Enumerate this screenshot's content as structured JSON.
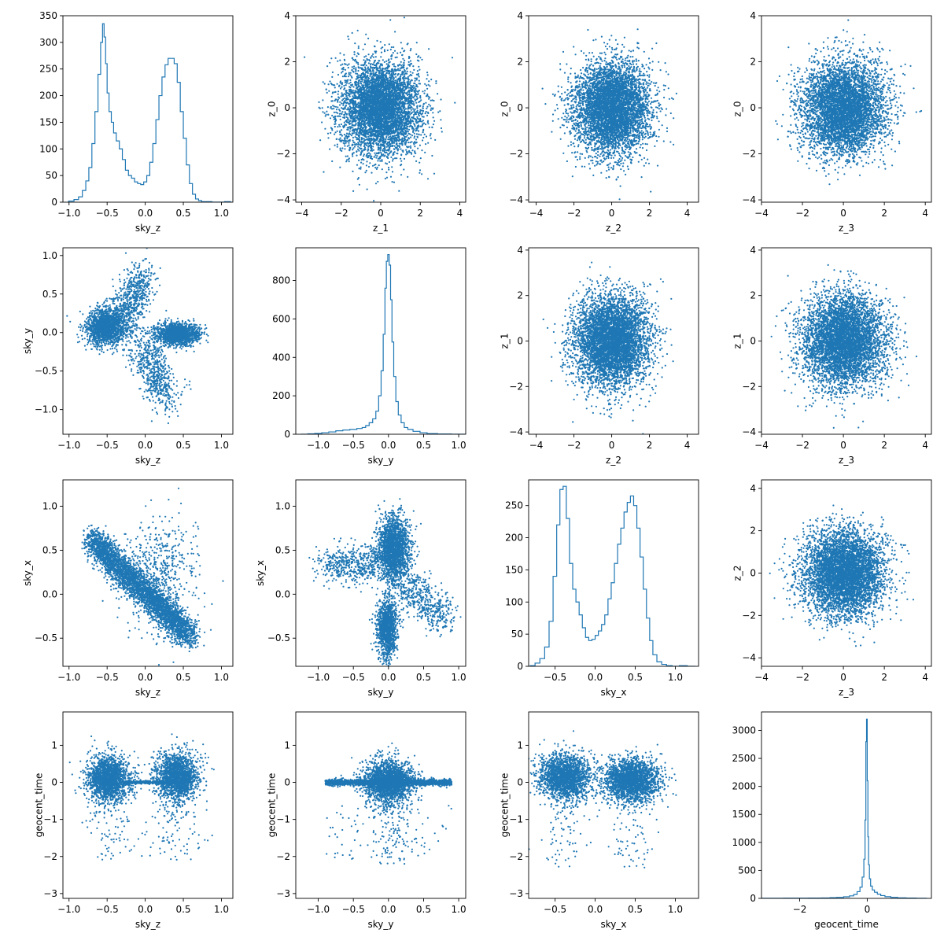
{
  "figure": {
    "rows": 4,
    "cols": 4,
    "color": "#1f77b4",
    "background": "#ffffff"
  },
  "chart_data": [
    {
      "type": "histogram",
      "row": 0,
      "col": 0,
      "xlabel": "sky_z",
      "ylabel": "",
      "xlim": [
        -1.08,
        1.15
      ],
      "ylim": [
        0,
        350
      ],
      "xticks": [
        -1.0,
        -0.5,
        0.0,
        0.5,
        1.0
      ],
      "xtick_labels": [
        "−1.0",
        "−0.5",
        "0.0",
        "0.5",
        "1.0"
      ],
      "yticks": [
        0,
        50,
        100,
        150,
        200,
        250,
        300,
        350
      ],
      "ytick_labels": [
        "0",
        "50",
        "100",
        "150",
        "200",
        "250",
        "300",
        "350"
      ],
      "bins": {
        "x": [
          -0.97,
          -0.9,
          -0.85,
          -0.8,
          -0.76,
          -0.72,
          -0.68,
          -0.64,
          -0.6,
          -0.57,
          -0.55,
          -0.53,
          -0.51,
          -0.49,
          -0.46,
          -0.43,
          -0.4,
          -0.36,
          -0.32,
          -0.28,
          -0.24,
          -0.2,
          -0.16,
          -0.12,
          -0.08,
          -0.04,
          0.0,
          0.04,
          0.08,
          0.12,
          0.16,
          0.2,
          0.24,
          0.28,
          0.32,
          0.36,
          0.4,
          0.44,
          0.48,
          0.52,
          0.56,
          0.6,
          0.64,
          0.68,
          0.72,
          0.76,
          0.8,
          0.85,
          0.9,
          1.0,
          1.08
        ],
        "y": [
          2,
          5,
          10,
          22,
          40,
          65,
          110,
          170,
          240,
          300,
          335,
          310,
          260,
          205,
          170,
          150,
          130,
          115,
          100,
          80,
          60,
          50,
          45,
          38,
          35,
          33,
          38,
          50,
          75,
          110,
          155,
          200,
          235,
          258,
          270,
          270,
          260,
          225,
          170,
          120,
          70,
          35,
          15,
          6,
          3,
          1,
          1,
          1,
          0,
          0,
          1
        ]
      }
    },
    {
      "type": "scatter",
      "row": 0,
      "col": 1,
      "xlabel": "z_1",
      "ylabel": "z_0",
      "xlim": [
        -4.3,
        4.3
      ],
      "ylim": [
        -4.1,
        4.0
      ],
      "xticks": [
        -4,
        -2,
        0,
        2,
        4
      ],
      "xtick_labels": [
        "−4",
        "−2",
        "0",
        "2",
        "4"
      ],
      "yticks": [
        -4,
        -2,
        0,
        2,
        4
      ],
      "ytick_labels": [
        "−4",
        "−2",
        "0",
        "2",
        "4"
      ],
      "distribution": "isotropic standard normal, centred (0, 0), sigma 1 in each coordinate"
    },
    {
      "type": "scatter",
      "row": 0,
      "col": 2,
      "xlabel": "z_2",
      "ylabel": "z_0",
      "xlim": [
        -4.4,
        4.6
      ],
      "ylim": [
        -4.1,
        4.0
      ],
      "xticks": [
        -4,
        -2,
        0,
        2,
        4
      ],
      "xtick_labels": [
        "−4",
        "−2",
        "0",
        "2",
        "4"
      ],
      "yticks": [
        -4,
        -2,
        0,
        2,
        4
      ],
      "ytick_labels": [
        "−4",
        "−2",
        "0",
        "2",
        "4"
      ],
      "distribution": "isotropic standard normal, centred (0, 0), sigma 1 in each coordinate"
    },
    {
      "type": "scatter",
      "row": 0,
      "col": 3,
      "xlabel": "z_3",
      "ylabel": "z_0",
      "xlim": [
        -4.0,
        4.3
      ],
      "ylim": [
        -4.1,
        4.0
      ],
      "xticks": [
        -4,
        -2,
        0,
        2,
        4
      ],
      "xtick_labels": [
        "−4",
        "−2",
        "0",
        "2",
        "4"
      ],
      "yticks": [
        -4,
        -2,
        0,
        2,
        4
      ],
      "ytick_labels": [
        "−4",
        "−2",
        "0",
        "2",
        "4"
      ],
      "distribution": "isotropic standard normal, centred (0, 0), sigma 1 in each coordinate"
    },
    {
      "type": "scatter",
      "row": 1,
      "col": 0,
      "xlabel": "sky_z",
      "ylabel": "sky_y",
      "xlim": [
        -1.08,
        1.15
      ],
      "ylim": [
        -1.32,
        1.1
      ],
      "xticks": [
        -1.0,
        -0.5,
        0.0,
        0.5,
        1.0
      ],
      "xtick_labels": [
        "−1.0",
        "−0.5",
        "0.0",
        "0.5",
        "1.0"
      ],
      "yticks": [
        -1.0,
        -0.5,
        0.0,
        0.5,
        1.0
      ],
      "ytick_labels": [
        "−1.0",
        "−0.5",
        "0.0",
        "0.5",
        "1.0"
      ],
      "distribution": "dense cluster near sky_z -0.5 and another near 0.4 along sky_y 0, diffuse arms reaching sky_y 0.9 and -1.2"
    },
    {
      "type": "histogram",
      "row": 1,
      "col": 1,
      "xlabel": "sky_y",
      "ylabel": "",
      "xlim": [
        -1.32,
        1.1
      ],
      "ylim": [
        0,
        970
      ],
      "xticks": [
        -1.0,
        -0.5,
        0.0,
        0.5,
        1.0
      ],
      "xtick_labels": [
        "−1.0",
        "−0.5",
        "0.0",
        "0.5",
        "1.0"
      ],
      "yticks": [
        0,
        200,
        400,
        600,
        800
      ],
      "ytick_labels": [
        "0",
        "200",
        "400",
        "600",
        "800"
      ],
      "bins": {
        "x": [
          -1.2,
          -1.1,
          -1.0,
          -0.9,
          -0.8,
          -0.7,
          -0.6,
          -0.5,
          -0.4,
          -0.35,
          -0.3,
          -0.25,
          -0.2,
          -0.16,
          -0.12,
          -0.09,
          -0.06,
          -0.04,
          -0.02,
          0.0,
          0.02,
          0.04,
          0.06,
          0.09,
          0.12,
          0.16,
          0.2,
          0.25,
          0.3,
          0.4,
          0.5,
          0.6,
          0.8,
          1.0
        ],
        "y": [
          0,
          2,
          4,
          8,
          12,
          18,
          22,
          25,
          30,
          35,
          45,
          60,
          80,
          120,
          200,
          330,
          520,
          760,
          900,
          935,
          880,
          700,
          480,
          300,
          170,
          100,
          60,
          35,
          25,
          15,
          8,
          3,
          1,
          0
        ]
      }
    },
    {
      "type": "scatter",
      "row": 1,
      "col": 2,
      "xlabel": "z_2",
      "ylabel": "z_1",
      "xlim": [
        -4.4,
        4.6
      ],
      "ylim": [
        -4.1,
        4.1
      ],
      "xticks": [
        -4,
        -2,
        0,
        2,
        4
      ],
      "xtick_labels": [
        "−4",
        "−2",
        "0",
        "2",
        "4"
      ],
      "yticks": [
        -4,
        -2,
        0,
        2,
        4
      ],
      "ytick_labels": [
        "−4",
        "−2",
        "0",
        "2",
        "4"
      ],
      "distribution": "isotropic standard normal, centred (0, 0), sigma 1 in each coordinate"
    },
    {
      "type": "scatter",
      "row": 1,
      "col": 3,
      "xlabel": "z_3",
      "ylabel": "z_1",
      "xlim": [
        -4.0,
        4.3
      ],
      "ylim": [
        -4.1,
        4.1
      ],
      "xticks": [
        -4,
        -2,
        0,
        2,
        4
      ],
      "xtick_labels": [
        "−4",
        "−2",
        "0",
        "2",
        "4"
      ],
      "yticks": [
        -4,
        -2,
        0,
        2,
        4
      ],
      "ytick_labels": [
        "−4",
        "−2",
        "0",
        "2",
        "4"
      ],
      "distribution": "isotropic standard normal, centred (0, 0), sigma 1 in each coordinate"
    },
    {
      "type": "scatter",
      "row": 2,
      "col": 0,
      "xlabel": "sky_z",
      "ylabel": "sky_x",
      "xlim": [
        -1.08,
        1.15
      ],
      "ylim": [
        -0.82,
        1.3
      ],
      "xticks": [
        -1.0,
        -0.5,
        0.0,
        0.5,
        1.0
      ],
      "xtick_labels": [
        "−1.0",
        "−0.5",
        "0.0",
        "0.5",
        "1.0"
      ],
      "yticks": [
        -0.5,
        0.0,
        0.5,
        1.0
      ],
      "ytick_labels": [
        "−0.5",
        "0.0",
        "0.5",
        "1.0"
      ],
      "distribution": "anti-correlated band from (-0.7, 0.65) to (0.6, -0.5) with diffuse scatter to sky_x 0.8"
    },
    {
      "type": "scatter",
      "row": 2,
      "col": 1,
      "xlabel": "sky_y",
      "ylabel": "sky_x",
      "xlim": [
        -1.32,
        1.1
      ],
      "ylim": [
        -0.82,
        1.3
      ],
      "xticks": [
        -1.0,
        -0.5,
        0.0,
        0.5,
        1.0
      ],
      "xtick_labels": [
        "−1.0",
        "−0.5",
        "0.0",
        "0.5",
        "1.0"
      ],
      "yticks": [
        -0.5,
        0.0,
        0.5,
        1.0
      ],
      "ytick_labels": [
        "−0.5",
        "0.0",
        "0.5",
        "1.0"
      ],
      "distribution": "dense clusters near (0.05, 0.55) and (0.0, -0.4), diffuse arms extending left and right"
    },
    {
      "type": "histogram",
      "row": 2,
      "col": 2,
      "xlabel": "sky_x",
      "ylabel": "",
      "xlim": [
        -0.83,
        1.29
      ],
      "ylim": [
        0,
        290
      ],
      "xticks": [
        -0.5,
        0.0,
        0.5,
        1.0
      ],
      "xtick_labels": [
        "−0.5",
        "0.0",
        "0.5",
        "1.0"
      ],
      "yticks": [
        0,
        50,
        100,
        150,
        200,
        250
      ],
      "ytick_labels": [
        "0",
        "50",
        "100",
        "150",
        "200",
        "250"
      ],
      "bins": {
        "x": [
          -0.78,
          -0.72,
          -0.66,
          -0.6,
          -0.55,
          -0.5,
          -0.46,
          -0.42,
          -0.38,
          -0.34,
          -0.3,
          -0.26,
          -0.22,
          -0.18,
          -0.14,
          -0.1,
          -0.06,
          -0.02,
          0.02,
          0.06,
          0.1,
          0.14,
          0.18,
          0.22,
          0.26,
          0.3,
          0.34,
          0.38,
          0.42,
          0.46,
          0.5,
          0.54,
          0.58,
          0.62,
          0.66,
          0.7,
          0.74,
          0.8,
          0.86,
          0.92,
          1.0,
          1.1,
          1.2
        ],
        "y": [
          1,
          5,
          12,
          30,
          70,
          140,
          220,
          275,
          280,
          230,
          160,
          120,
          100,
          80,
          60,
          45,
          40,
          42,
          48,
          55,
          65,
          80,
          105,
          130,
          160,
          190,
          215,
          240,
          255,
          265,
          250,
          215,
          170,
          120,
          75,
          40,
          18,
          7,
          3,
          1,
          0,
          1,
          0
        ]
      }
    },
    {
      "type": "scatter",
      "row": 2,
      "col": 3,
      "xlabel": "z_3",
      "ylabel": "z_2",
      "xlim": [
        -4.0,
        4.3
      ],
      "ylim": [
        -4.4,
        4.4
      ],
      "xticks": [
        -4,
        -2,
        0,
        2,
        4
      ],
      "xtick_labels": [
        "−4",
        "−2",
        "0",
        "2",
        "4"
      ],
      "yticks": [
        -4,
        -2,
        0,
        2,
        4
      ],
      "ytick_labels": [
        "−4",
        "−2",
        "0",
        "2",
        "4"
      ],
      "distribution": "isotropic standard normal, centred (0, 0), sigma 1 in each coordinate"
    },
    {
      "type": "scatter",
      "row": 3,
      "col": 0,
      "xlabel": "sky_z",
      "ylabel": "geocent_time",
      "xlim": [
        -1.08,
        1.15
      ],
      "ylim": [
        -3.13,
        1.9
      ],
      "xticks": [
        -1.0,
        -0.5,
        0.0,
        0.5,
        1.0
      ],
      "xtick_labels": [
        "−1.0",
        "−0.5",
        "0.0",
        "0.5",
        "1.0"
      ],
      "yticks": [
        -3,
        -2,
        -1,
        0,
        1
      ],
      "ytick_labels": [
        "−3",
        "−2",
        "−1",
        "0",
        "1"
      ],
      "distribution": "two clusters near sky_z -0.5 and 0.4 around geocent_time 0, narrow line at 0 between, sparse tail to -3"
    },
    {
      "type": "scatter",
      "row": 3,
      "col": 1,
      "xlabel": "sky_y",
      "ylabel": "geocent_time",
      "xlim": [
        -1.32,
        1.1
      ],
      "ylim": [
        -3.13,
        1.9
      ],
      "xticks": [
        -1.0,
        -0.5,
        0.0,
        0.5,
        1.0
      ],
      "xtick_labels": [
        "−1.0",
        "−0.5",
        "0.0",
        "0.5",
        "1.0"
      ],
      "yticks": [
        -3,
        -2,
        -1,
        0,
        1
      ],
      "ytick_labels": [
        "−3",
        "−2",
        "−1",
        "0",
        "1"
      ],
      "distribution": "concentrated near sky_y 0 with vertical spread, thin horizontal band at geocent_time 0"
    },
    {
      "type": "scatter",
      "row": 3,
      "col": 2,
      "xlabel": "sky_x",
      "ylabel": "geocent_time",
      "xlim": [
        -0.83,
        1.29
      ],
      "ylim": [
        -3.13,
        1.9
      ],
      "xticks": [
        -0.5,
        0.0,
        0.5,
        1.0
      ],
      "xtick_labels": [
        "−0.5",
        "0.0",
        "0.5",
        "1.0"
      ],
      "yticks": [
        -3,
        -2,
        -1,
        0,
        1
      ],
      "ytick_labels": [
        "−3",
        "−2",
        "−1",
        "0",
        "1"
      ],
      "distribution": "two clusters near sky_x -0.4 and 0.5 around geocent_time 0, sparse tail downward"
    },
    {
      "type": "histogram",
      "row": 3,
      "col": 3,
      "xlabel": "geocent_time",
      "ylabel": "",
      "xlim": [
        -3.13,
        1.9
      ],
      "ylim": [
        0,
        3330
      ],
      "xticks": [
        -2,
        0
      ],
      "xtick_labels": [
        "−2",
        "0"
      ],
      "yticks": [
        0,
        500,
        1000,
        1500,
        2000,
        2500,
        3000
      ],
      "ytick_labels": [
        "0",
        "500",
        "1000",
        "1500",
        "2000",
        "2500",
        "3000"
      ],
      "bins": {
        "x": [
          -2.95,
          -2.0,
          -1.5,
          -1.2,
          -1.0,
          -0.8,
          -0.6,
          -0.45,
          -0.35,
          -0.25,
          -0.18,
          -0.12,
          -0.08,
          -0.05,
          -0.03,
          -0.01,
          0.01,
          0.03,
          0.05,
          0.08,
          0.12,
          0.18,
          0.25,
          0.35,
          0.45,
          0.6,
          0.8,
          1.0,
          1.3,
          1.6
        ],
        "y": [
          2,
          3,
          5,
          8,
          12,
          18,
          28,
          45,
          70,
          120,
          200,
          380,
          700,
          1400,
          2800,
          3200,
          2100,
          1100,
          600,
          350,
          220,
          150,
          110,
          75,
          50,
          30,
          18,
          10,
          5,
          2
        ]
      }
    }
  ]
}
